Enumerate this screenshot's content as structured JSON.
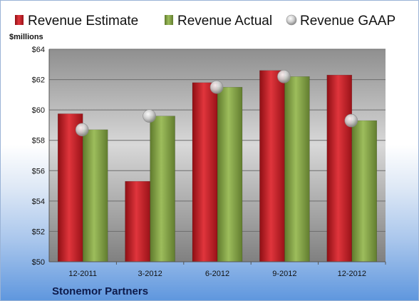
{
  "chart_data": {
    "type": "bar",
    "company": "Stonemor Partners",
    "ylabel": "$millions",
    "ylim": [
      50,
      64
    ],
    "yticks": [
      "$50",
      "$52",
      "$54",
      "$56",
      "$58",
      "$60",
      "$62",
      "$64"
    ],
    "ytick_values": [
      50,
      52,
      54,
      56,
      58,
      60,
      62,
      64
    ],
    "categories": [
      "12-2011",
      "3-2012",
      "6-2012",
      "9-2012",
      "12-2012"
    ],
    "series": [
      {
        "name": "Revenue Estimate",
        "kind": "bar",
        "color": "#cc1f27",
        "values": [
          59.75,
          55.3,
          61.8,
          62.6,
          62.3
        ]
      },
      {
        "name": "Revenue Actual",
        "kind": "bar",
        "color": "#8bab4a",
        "values": [
          58.7,
          59.6,
          61.5,
          62.2,
          59.3
        ]
      },
      {
        "name": "Revenue GAAP",
        "kind": "marker",
        "color": "#c9c9c9",
        "values": [
          58.7,
          59.6,
          61.5,
          62.2,
          59.3
        ]
      }
    ],
    "grid": true,
    "legend_position": "top"
  }
}
